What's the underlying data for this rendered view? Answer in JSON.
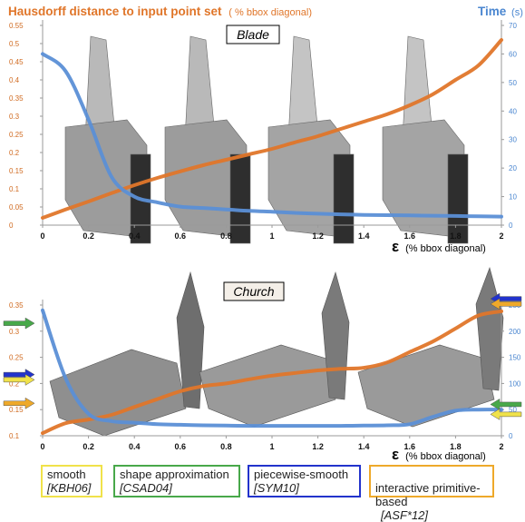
{
  "colors": {
    "hausdorff": "#e0762a",
    "time": "#5b8fd6",
    "smooth": "#f0e24a",
    "shape_approx": "#48a84a",
    "piecewise": "#2233cc",
    "interactive": "#eea92a",
    "axis_tick": "#d06a20",
    "time_tick": "#4a86d0"
  },
  "header": {
    "title": "Hausdorff distance to input point set",
    "title_unit": "( % bbox diagonal)",
    "time_label": "Time",
    "time_unit": "(s)"
  },
  "x_axis": {
    "symbol": "ε",
    "unit": "(% bbox diagonal)"
  },
  "chart_data": [
    {
      "type": "line",
      "panel_label": "Blade",
      "x": [
        0,
        0.1,
        0.2,
        0.3,
        0.4,
        0.5,
        0.6,
        0.7,
        0.8,
        0.9,
        1.0,
        1.1,
        1.2,
        1.3,
        1.4,
        1.5,
        1.6,
        1.7,
        1.8,
        1.9,
        2.0
      ],
      "xlim": [
        0,
        2
      ],
      "xticks": [
        "0",
        "0.2",
        "0.4",
        "0.6",
        "0.8",
        "1",
        "1.2",
        "1.4",
        "1.6",
        "1.8",
        "2"
      ],
      "yticks_left": [
        "0",
        "0.05",
        "0.1",
        "0.15",
        "0.2",
        "0.25",
        "0.3",
        "0.35",
        "0.4",
        "0.45",
        "0.5",
        "0.55"
      ],
      "ylim_left": [
        0,
        0.55
      ],
      "yticks_right": [
        "0",
        "10",
        "20",
        "30",
        "40",
        "50",
        "60",
        "70"
      ],
      "ylim_right": [
        0,
        70
      ],
      "series": [
        {
          "axis": "left",
          "color_key": "hausdorff",
          "values": [
            0.02,
            0.043,
            0.065,
            0.088,
            0.11,
            0.13,
            0.148,
            0.165,
            0.18,
            0.195,
            0.21,
            0.228,
            0.245,
            0.265,
            0.285,
            0.305,
            0.33,
            0.36,
            0.4,
            0.44,
            0.51
          ]
        },
        {
          "axis": "right",
          "color_key": "time",
          "values": [
            60,
            54,
            37,
            17,
            10,
            8,
            6.5,
            6,
            5.5,
            5,
            4.7,
            4.3,
            4,
            3.8,
            3.6,
            3.5,
            3.4,
            3.3,
            3.2,
            3.1,
            3.0
          ]
        }
      ]
    },
    {
      "type": "line",
      "panel_label": "Church",
      "x": [
        0,
        0.1,
        0.2,
        0.3,
        0.4,
        0.5,
        0.6,
        0.7,
        0.8,
        0.9,
        1.0,
        1.1,
        1.2,
        1.3,
        1.4,
        1.5,
        1.6,
        1.7,
        1.8,
        1.9,
        2.0
      ],
      "xlim": [
        0,
        2
      ],
      "xticks": [
        "0",
        "0.2",
        "0.4",
        "0.6",
        "0.8",
        "1",
        "1.2",
        "1.4",
        "1.6",
        "1.8",
        "2"
      ],
      "yticks_left": [
        "0.1",
        "0.15",
        "0.2",
        "0.25",
        "0.3",
        "0.35"
      ],
      "ylim_left": [
        0.1,
        0.35
      ],
      "yticks_right": [
        "0",
        "50",
        "100",
        "150",
        "200",
        "250"
      ],
      "ylim_right": [
        0,
        250
      ],
      "series": [
        {
          "axis": "left",
          "color_key": "hausdorff",
          "values": [
            0.105,
            0.124,
            0.131,
            0.14,
            0.155,
            0.17,
            0.185,
            0.195,
            0.2,
            0.208,
            0.215,
            0.22,
            0.225,
            0.228,
            0.23,
            0.24,
            0.26,
            0.28,
            0.305,
            0.33,
            0.338
          ]
        },
        {
          "axis": "right",
          "color_key": "time",
          "values": [
            240,
            110,
            42,
            28,
            25,
            22,
            21,
            20,
            19.5,
            19,
            19,
            19,
            19,
            19,
            19.5,
            20,
            22,
            36,
            48,
            50,
            50
          ]
        }
      ],
      "markers": [
        {
          "side": "left",
          "value": 0.315,
          "color_key": "shape_approx"
        },
        {
          "side": "left",
          "value": 0.217,
          "color_key": "piecewise"
        },
        {
          "side": "left",
          "value": 0.207,
          "color_key": "smooth"
        },
        {
          "side": "left",
          "value": 0.162,
          "color_key": "interactive"
        },
        {
          "side": "right",
          "value": 262,
          "color_key": "piecewise"
        },
        {
          "side": "right",
          "value": 252,
          "color_key": "interactive"
        },
        {
          "side": "right",
          "value": 60,
          "color_key": "shape_approx"
        },
        {
          "side": "right",
          "value": 41,
          "color_key": "smooth"
        }
      ]
    }
  ],
  "legend": [
    {
      "label": "smooth",
      "ref": "[KBH06]",
      "color_key": "smooth"
    },
    {
      "label": "shape approximation",
      "ref": "[CSAD04]",
      "color_key": "shape_approx"
    },
    {
      "label": "piecewise-smooth",
      "ref": "[SYM10]",
      "color_key": "piecewise"
    },
    {
      "label": "interactive primitive-\nbased",
      "ref": "[ASF*12]",
      "color_key": "interactive"
    }
  ]
}
